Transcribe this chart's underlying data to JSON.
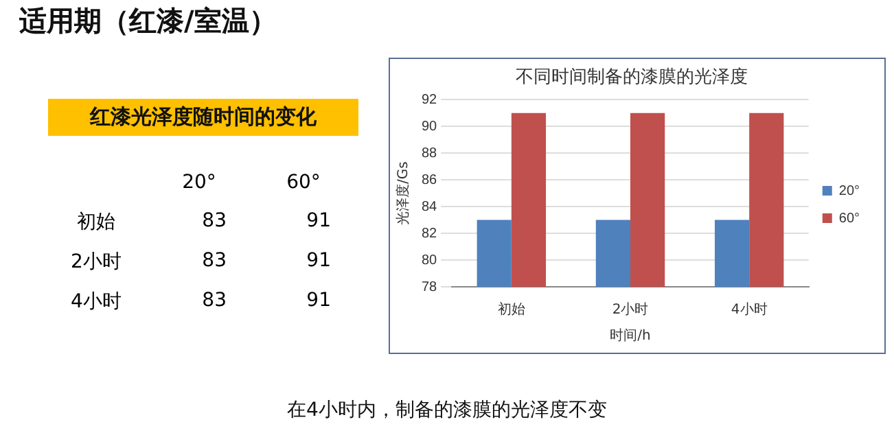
{
  "chart_data": [
    {
      "type": "other",
      "title": "红漆光泽度随时间的变化",
      "categories": [
        "初始",
        "2小时",
        "4小时"
      ],
      "series": [
        {
          "name": "20°",
          "values": [
            83,
            83,
            83
          ]
        },
        {
          "name": "60°",
          "values": [
            91,
            91,
            91
          ]
        }
      ],
      "data_labels": true
    },
    {
      "type": "bar",
      "title": "不同时间制备的漆膜的光泽度",
      "xlabel": "时间/h",
      "ylabel": "光泽度/Gs",
      "categories": [
        "初始",
        "2小时",
        "4小时"
      ],
      "series": [
        {
          "name": "20°",
          "color": "#4f81bd",
          "values": [
            83,
            83,
            83
          ]
        },
        {
          "name": "60°",
          "color": "#c0504d",
          "values": [
            91,
            91,
            91
          ]
        }
      ],
      "ylim": [
        78,
        92
      ],
      "yticks": [
        78,
        80,
        82,
        84,
        86,
        88,
        90,
        92
      ],
      "grid": "y",
      "legend": "right",
      "annotations": [
        "适用期（红漆/室温）",
        "在4小时内，制备的漆膜的光泽度不变"
      ]
    }
  ]
}
